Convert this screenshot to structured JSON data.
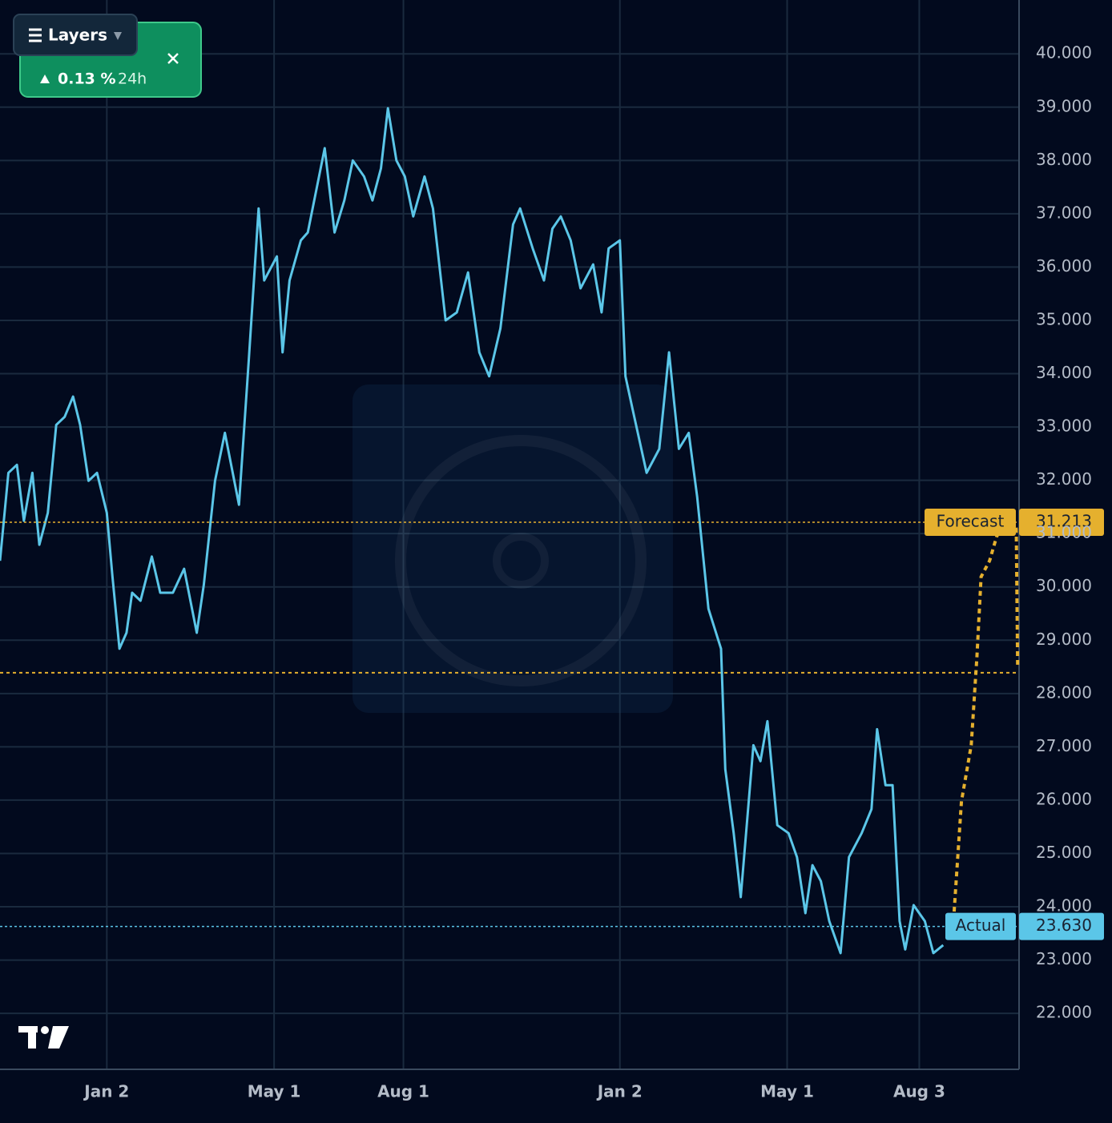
{
  "chart_data": {
    "type": "line",
    "ui": {
      "layers_button": "Layers",
      "change": "0.13 %",
      "period": "24h"
    },
    "xlim": [
      -76,
      649
    ],
    "xticks": [
      {
        "value": 0,
        "label": "Jan 2"
      },
      {
        "value": 119,
        "label": "May 1"
      },
      {
        "value": 211,
        "label": "Aug 1"
      },
      {
        "value": 365,
        "label": "Jan 2"
      },
      {
        "value": 484,
        "label": "May 1"
      },
      {
        "value": 578,
        "label": "Aug 3"
      }
    ],
    "ylim": [
      20.95,
      41.01
    ],
    "yticks": [
      {
        "value": 22,
        "label": "22.000"
      },
      {
        "value": 23,
        "label": "23.000"
      },
      {
        "value": 24,
        "label": "24.000"
      },
      {
        "value": 25,
        "label": "25.000"
      },
      {
        "value": 26,
        "label": "26.000"
      },
      {
        "value": 27,
        "label": "27.000"
      },
      {
        "value": 28,
        "label": "28.000"
      },
      {
        "value": 29,
        "label": "29.000"
      },
      {
        "value": 30,
        "label": "30.000"
      },
      {
        "value": 31,
        "label": "31.000"
      },
      {
        "value": 32,
        "label": "32.000"
      },
      {
        "value": 33,
        "label": "33.000"
      },
      {
        "value": 34,
        "label": "34.000"
      },
      {
        "value": 35,
        "label": "35.000"
      },
      {
        "value": 36,
        "label": "36.000"
      },
      {
        "value": 37,
        "label": "37.000"
      },
      {
        "value": 38,
        "label": "38.000"
      },
      {
        "value": 39,
        "label": "39.000"
      },
      {
        "value": 40,
        "label": "40.000"
      }
    ],
    "grid": true,
    "reference_line": {
      "value": 28.39,
      "color": "#e5b02e"
    },
    "series": [
      {
        "name": "Actual",
        "color": "#5bc6e8",
        "dashed": false,
        "tag": {
          "value": 23.63,
          "label": "23.630"
        },
        "x": [
          -76,
          -70,
          -64,
          -59,
          -53,
          -48,
          -42,
          -36,
          -30,
          -24,
          -19,
          -13,
          -7,
          0,
          4,
          9,
          14,
          18,
          24,
          32,
          38,
          47,
          55,
          64,
          69,
          77,
          84,
          94,
          101,
          108,
          112,
          121,
          125,
          130,
          138,
          143,
          155,
          162,
          169,
          175,
          183,
          189,
          195,
          200,
          206,
          212,
          218,
          226,
          232,
          241,
          249,
          257,
          265,
          272,
          280,
          289,
          294,
          303,
          311,
          317,
          323,
          330,
          337,
          346,
          352,
          357,
          365,
          369,
          374,
          384,
          393,
          400,
          407,
          414,
          420,
          428,
          437,
          440,
          446,
          451,
          460,
          465,
          470,
          477,
          485,
          491,
          497,
          502,
          508,
          514,
          522,
          528,
          537,
          544,
          548,
          554,
          559,
          564,
          568,
          574,
          582,
          588,
          595
        ],
        "values": [
          30.49,
          32.14,
          32.29,
          31.24,
          32.14,
          30.79,
          31.39,
          33.04,
          33.19,
          33.57,
          33.04,
          31.99,
          32.14,
          31.39,
          30.19,
          28.84,
          29.14,
          29.89,
          29.74,
          30.57,
          29.89,
          29.89,
          30.34,
          29.14,
          30.04,
          31.99,
          32.89,
          31.54,
          34.25,
          37.1,
          35.75,
          36.2,
          34.4,
          35.75,
          36.5,
          36.65,
          38.23,
          36.65,
          37.25,
          38.0,
          37.7,
          37.25,
          37.85,
          38.98,
          38.0,
          37.7,
          36.95,
          37.7,
          37.1,
          35.0,
          35.15,
          35.9,
          34.4,
          33.95,
          34.85,
          36.8,
          37.1,
          36.35,
          35.75,
          36.72,
          36.95,
          36.5,
          35.6,
          36.05,
          35.15,
          36.35,
          36.5,
          33.95,
          33.34,
          32.14,
          32.59,
          34.4,
          32.59,
          32.89,
          31.69,
          29.59,
          28.84,
          26.58,
          25.38,
          24.18,
          27.03,
          26.73,
          27.48,
          25.53,
          25.38,
          24.93,
          23.88,
          24.78,
          24.48,
          23.73,
          23.13,
          24.93,
          25.38,
          25.83,
          27.33,
          26.28,
          26.28,
          23.73,
          23.2,
          24.03,
          23.73,
          23.13,
          23.28
        ]
      },
      {
        "name": "Forecast",
        "color": "#e5b02e",
        "dashed": true,
        "tag": {
          "value": 31.213,
          "label": "31.213"
        },
        "x": [
          602,
          608,
          615,
          619,
          622,
          628,
          633,
          642,
          647,
          648
        ],
        "values": [
          23.58,
          25.98,
          27.03,
          28.69,
          30.19,
          30.49,
          30.94,
          31.39,
          31.09,
          28.54
        ]
      }
    ]
  }
}
